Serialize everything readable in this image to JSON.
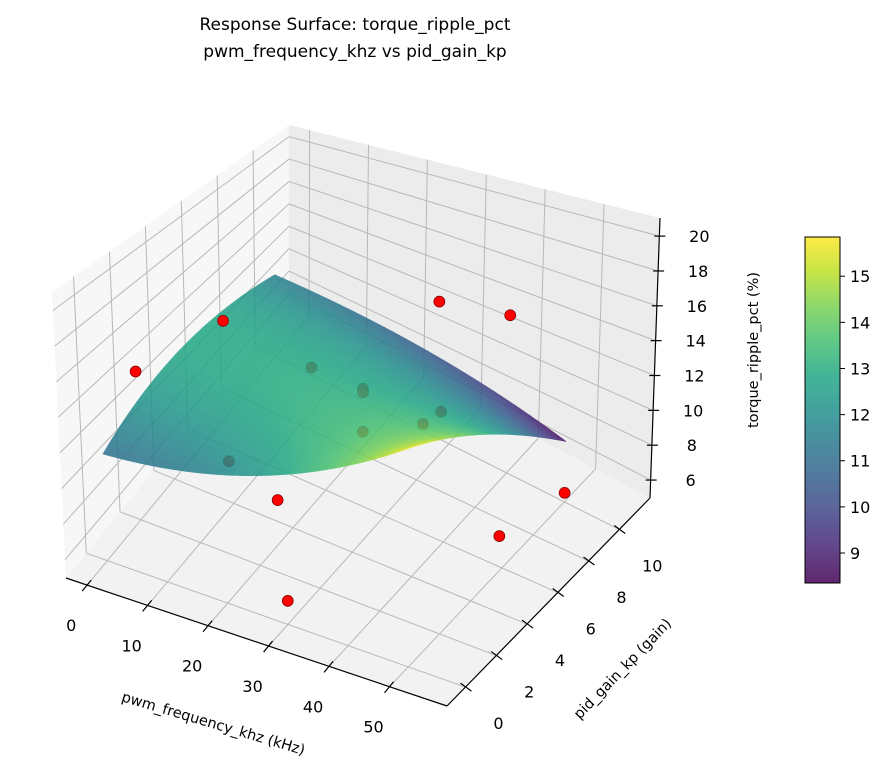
{
  "chart_data": {
    "type": "surface3d",
    "title": "Response Surface: torque_ripple_pct",
    "subtitle": "pwm_frequency_khz vs pid_gain_kp",
    "xlabel": "pwm_frequency_khz (kHz)",
    "ylabel": "pid_gain_kp (gain)",
    "zlabel": "torque_ripple_pct (%)",
    "xlim": [
      -3.5,
      59.5
    ],
    "ylim": [
      -1.2,
      12.0
    ],
    "zlim": [
      4.97,
      21.04
    ],
    "xticks": [
      0,
      10,
      20,
      30,
      40,
      50
    ],
    "yticks": [
      0,
      2,
      4,
      6,
      8,
      10
    ],
    "zticks": [
      6,
      8,
      10,
      12,
      14,
      16,
      18,
      20
    ],
    "grid": true,
    "colormap": "viridis",
    "surface": {
      "x_nodes": [
        0,
        25,
        50
      ],
      "y_nodes": [
        0,
        5,
        10
      ],
      "z": [
        [
          11.1,
          12.3,
          15.8
        ],
        [
          12.8,
          13.0,
          13.0
        ],
        [
          11.5,
          10.5,
          8.5
        ]
      ],
      "alpha": 0.85
    },
    "points_color": "#ff0000",
    "points": [
      {
        "x": 0,
        "y": 2,
        "z": 14.0,
        "behind_surface": false
      },
      {
        "x": 0,
        "y": 7,
        "z": 11.9,
        "behind_surface": false
      },
      {
        "x": 30,
        "y": 0,
        "z": 6.2,
        "behind_surface": false
      },
      {
        "x": 23,
        "y": 2,
        "z": 9.0,
        "behind_surface": false
      },
      {
        "x": 52,
        "y": 5,
        "z": 7.8,
        "behind_surface": false
      },
      {
        "x": 50,
        "y": 10,
        "z": 5.5,
        "behind_surface": false
      },
      {
        "x": 28,
        "y": 10,
        "z": 14.0,
        "behind_surface": false
      },
      {
        "x": 40,
        "y": 10,
        "z": 14.7,
        "behind_surface": false
      },
      {
        "x": 12,
        "y": 8,
        "z": 9.3,
        "behind_surface": true
      },
      {
        "x": 15,
        "y": 2,
        "z": 10.3,
        "behind_surface": true
      },
      {
        "x": 29,
        "y": 5,
        "z": 13.3,
        "behind_surface": true
      },
      {
        "x": 29,
        "y": 5,
        "z": 13.1,
        "behind_surface": true
      },
      {
        "x": 29,
        "y": 5,
        "z": 10.8,
        "behind_surface": true
      },
      {
        "x": 39,
        "y": 5,
        "z": 12.4,
        "behind_surface": true
      },
      {
        "x": 34,
        "y": 8,
        "z": 9.8,
        "behind_surface": true
      }
    ],
    "colorbar": {
      "range": [
        8.35,
        15.85
      ],
      "ticks": [
        9,
        10,
        11,
        12,
        13,
        14,
        15
      ]
    }
  }
}
